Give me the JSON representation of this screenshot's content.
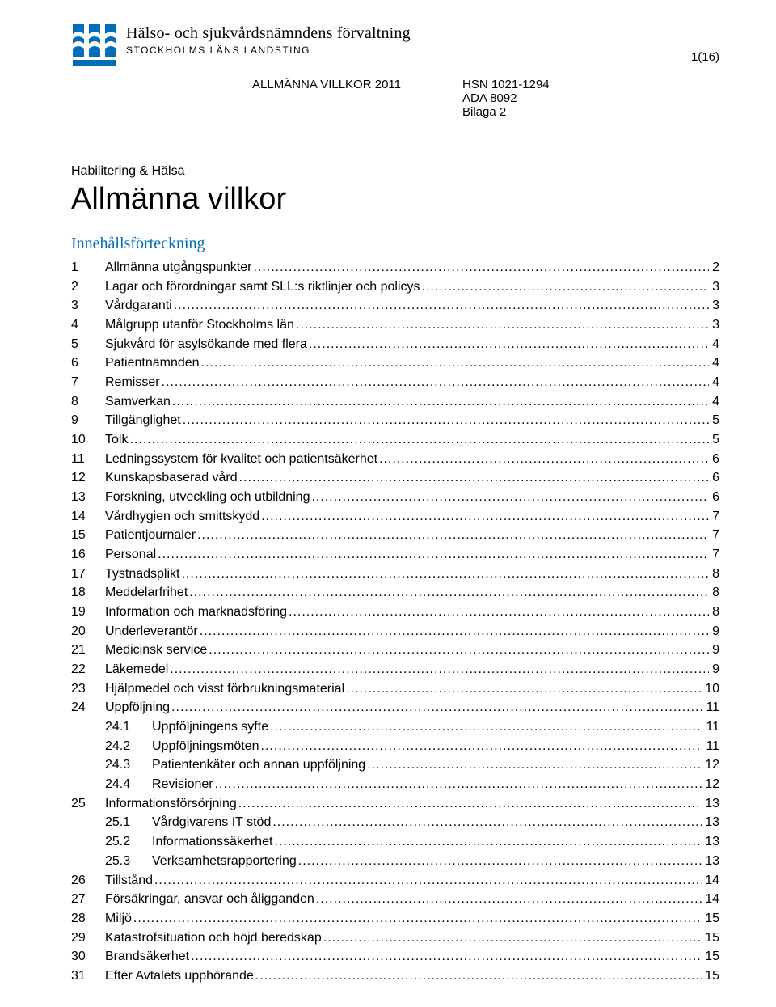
{
  "colors": {
    "brand_blue": "#006db6",
    "text": "#000000",
    "background": "#ffffff"
  },
  "page_number": "1(16)",
  "logo": {
    "line1": "Hälso- och sjukvårdsnämndens förvaltning",
    "line2": "STOCKHOLMS LÄNS LANDSTING"
  },
  "doc_meta": {
    "left": "ALLMÄNNA VILLKOR 2011",
    "right1": "HSN 1021-1294",
    "right2": "ADA 8092",
    "right3": "Bilaga 2"
  },
  "subject": "Habilitering & Hälsa",
  "title": "Allmänna villkor",
  "toc_heading": "Innehållsförteckning",
  "toc": [
    {
      "n": "1",
      "t": "Allmänna utgångspunkter",
      "p": "2"
    },
    {
      "n": "2",
      "t": "Lagar och förordningar samt SLL:s riktlinjer och policys",
      "p": "3"
    },
    {
      "n": "3",
      "t": "Vårdgaranti",
      "p": "3"
    },
    {
      "n": "4",
      "t": "Målgrupp utanför Stockholms län",
      "p": "3"
    },
    {
      "n": "5",
      "t": "Sjukvård för asylsökande med flera",
      "p": "4"
    },
    {
      "n": "6",
      "t": "Patientnämnden",
      "p": "4"
    },
    {
      "n": "7",
      "t": "Remisser",
      "p": "4"
    },
    {
      "n": "8",
      "t": "Samverkan",
      "p": "4"
    },
    {
      "n": "9",
      "t": "Tillgänglighet",
      "p": "5"
    },
    {
      "n": "10",
      "t": "Tolk",
      "p": "5"
    },
    {
      "n": "11",
      "t": "Ledningssystem för kvalitet och patientsäkerhet",
      "p": "6"
    },
    {
      "n": "12",
      "t": "Kunskapsbaserad vård",
      "p": "6"
    },
    {
      "n": "13",
      "t": "Forskning, utveckling och utbildning",
      "p": "6"
    },
    {
      "n": "14",
      "t": "Vårdhygien och smittskydd",
      "p": "7"
    },
    {
      "n": "15",
      "t": "Patientjournaler",
      "p": "7"
    },
    {
      "n": "16",
      "t": "Personal",
      "p": "7"
    },
    {
      "n": "17",
      "t": "Tystnadsplikt",
      "p": "8"
    },
    {
      "n": "18",
      "t": "Meddelarfrihet",
      "p": "8"
    },
    {
      "n": "19",
      "t": "Information och marknadsföring",
      "p": "8"
    },
    {
      "n": "20",
      "t": "Underleverantör",
      "p": "9"
    },
    {
      "n": "21",
      "t": "Medicinsk service",
      "p": "9"
    },
    {
      "n": "22",
      "t": "Läkemedel",
      "p": "9"
    },
    {
      "n": "23",
      "t": "Hjälpmedel och visst förbrukningsmaterial",
      "p": "10"
    },
    {
      "n": "24",
      "t": "Uppföljning",
      "p": "11"
    },
    {
      "n": "24.1",
      "t": "Uppföljningens syfte",
      "p": "11",
      "sub": true
    },
    {
      "n": "24.2",
      "t": "Uppföljningsmöten",
      "p": "11",
      "sub": true
    },
    {
      "n": "24.3",
      "t": "Patientenkäter och annan uppföljning",
      "p": "12",
      "sub": true
    },
    {
      "n": "24.4",
      "t": "Revisioner",
      "p": "12",
      "sub": true
    },
    {
      "n": "25",
      "t": "Informationsförsörjning",
      "p": "13"
    },
    {
      "n": "25.1",
      "t": "Vårdgivarens IT stöd",
      "p": "13",
      "sub": true
    },
    {
      "n": "25.2",
      "t": "Informationssäkerhet",
      "p": "13",
      "sub": true
    },
    {
      "n": "25.3",
      "t": "Verksamhetsrapportering",
      "p": "13",
      "sub": true
    },
    {
      "n": "26",
      "t": "Tillstånd",
      "p": "14"
    },
    {
      "n": "27",
      "t": "Försäkringar, ansvar och åligganden",
      "p": "14"
    },
    {
      "n": "28",
      "t": "Miljö",
      "p": "15"
    },
    {
      "n": "29",
      "t": "Katastrofsituation och höjd beredskap",
      "p": "15"
    },
    {
      "n": "30",
      "t": "Brandsäkerhet",
      "p": "15"
    },
    {
      "n": "31",
      "t": "Efter Avtalets upphörande",
      "p": "15"
    }
  ]
}
